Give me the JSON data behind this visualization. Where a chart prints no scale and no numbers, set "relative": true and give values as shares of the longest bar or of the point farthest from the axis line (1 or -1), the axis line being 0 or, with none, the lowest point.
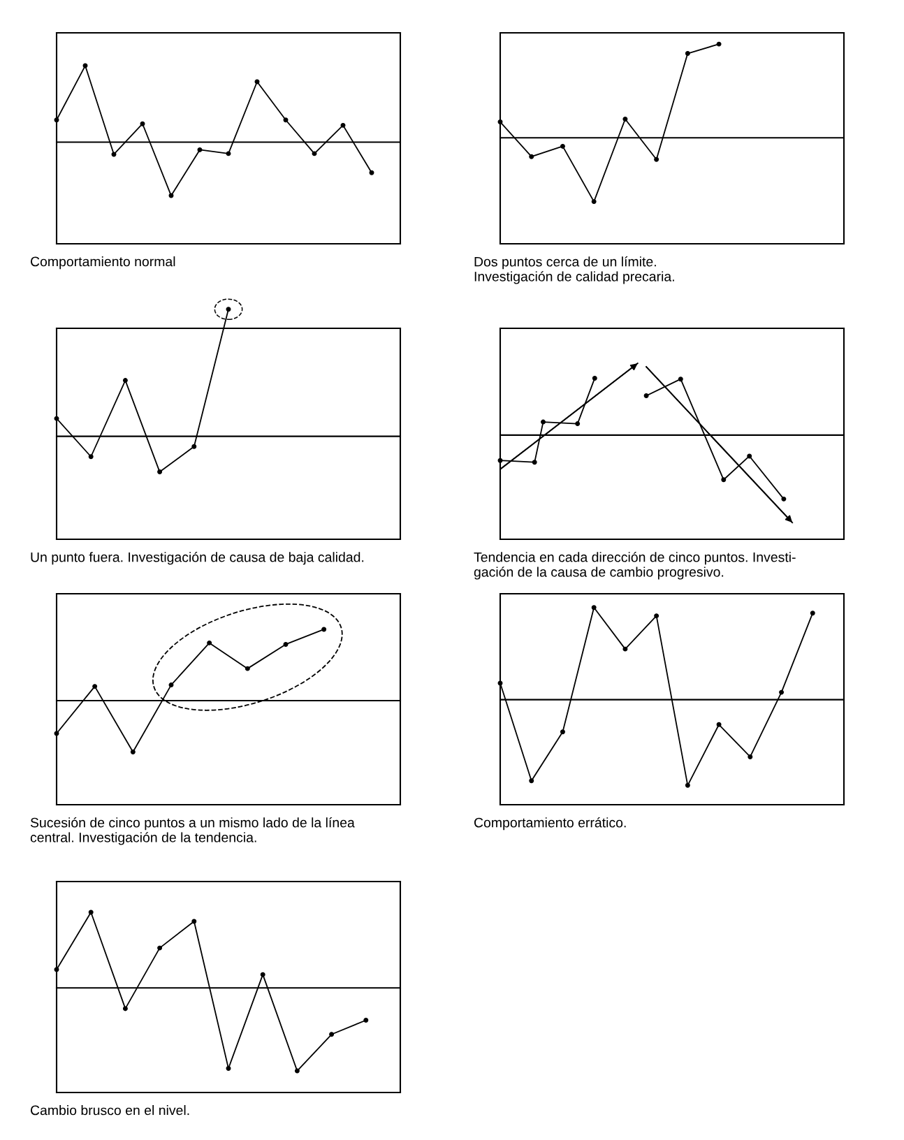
{
  "chart_data": [
    {
      "type": "line",
      "relative": true,
      "marker": "circle",
      "categories": [
        null,
        null,
        null,
        null,
        null,
        null,
        null,
        null,
        null,
        null,
        null,
        null,
        null
      ],
      "series": [
        {
          "color": "#000000",
          "values": [
            0.29,
            1,
            -0.16,
            0.24,
            -0.7,
            -0.1,
            -0.15,
            0.79,
            0.29,
            -0.15,
            0.22,
            -0.4,
            null
          ]
        }
      ],
      "ref_lines": [
        {
          "axis": "y",
          "value": 0
        },
        {
          "axis": "y",
          "value": 1.43
        },
        {
          "axis": "y",
          "value": -1.33
        }
      ],
      "annotations": [
        "Comportamiento normal"
      ]
    },
    {
      "type": "line",
      "relative": true,
      "marker": "circle",
      "categories": [
        null,
        null,
        null,
        null,
        null,
        null,
        null,
        null,
        null,
        null,
        null,
        null
      ],
      "series": [
        {
          "color": "#000000",
          "values": [
            0.17,
            -0.2,
            -0.09,
            -0.68,
            0.2,
            -0.23,
            0.9,
            1,
            null,
            null,
            null,
            null
          ]
        }
      ],
      "ref_lines": [
        {
          "axis": "y",
          "value": 0
        },
        {
          "axis": "y",
          "value": 1.12
        },
        {
          "axis": "y",
          "value": -1.13
        }
      ],
      "annotations": [
        "Dos puntos cerca de un límite.\nInvestigación de calidad precaria."
      ]
    },
    {
      "type": "line",
      "relative": true,
      "marker": "circle",
      "categories": [
        null,
        null,
        null,
        null,
        null,
        null,
        null,
        null,
        null,
        null,
        null
      ],
      "series": [
        {
          "color": "#000000",
          "values": [
            0.14,
            -0.16,
            0.44,
            -0.28,
            -0.08,
            1,
            null,
            null,
            null,
            null,
            null
          ]
        }
      ],
      "ref_lines": [
        {
          "axis": "y",
          "value": 0
        },
        {
          "axis": "y",
          "value": 0.85
        },
        {
          "axis": "y",
          "value": -0.81
        }
      ],
      "annotations": [
        "Un punto fuera. Investigación de causa de baja calidad."
      ]
    },
    {
      "type": "line",
      "relative": true,
      "marker": "circle",
      "categories": [
        null,
        null,
        null,
        null,
        null,
        null,
        null,
        null,
        null,
        null,
        null,
        null,
        null,
        null,
        null,
        null,
        null,
        null,
        null,
        null,
        null,
        null,
        null,
        null,
        null,
        null,
        null,
        null,
        null,
        null,
        null,
        null,
        null,
        null,
        null,
        null,
        null,
        null,
        null,
        null,
        null
      ],
      "series": [
        {
          "color": "#000000",
          "values": [
            -0.29,
            null,
            null,
            null,
            -0.31,
            0.15,
            null,
            null,
            null,
            0.13,
            null,
            0.65,
            null,
            null,
            null,
            null,
            null,
            null,
            null,
            null,
            null,
            null,
            null,
            null,
            null,
            null,
            null,
            null,
            null,
            null,
            null,
            null,
            null,
            null,
            null,
            null,
            null,
            null,
            null,
            null,
            null
          ]
        },
        {
          "color": "#000000",
          "values": [
            null,
            null,
            null,
            null,
            null,
            null,
            null,
            null,
            null,
            null,
            null,
            null,
            null,
            null,
            null,
            null,
            null,
            0.45,
            null,
            null,
            null,
            0.64,
            null,
            null,
            null,
            null,
            -0.51,
            null,
            null,
            -0.24,
            null,
            null,
            null,
            -0.73,
            null,
            null,
            null,
            null,
            null,
            null,
            null
          ]
        },
        {
          "type": "line",
          "marker": "none",
          "color": "#000000",
          "values": [
            -0.39,
            null,
            null,
            null,
            null,
            null,
            null,
            null,
            null,
            null,
            null,
            null,
            null,
            null,
            null,
            null,
            0.82,
            null,
            null,
            null,
            null,
            null,
            null,
            null,
            null,
            null,
            null,
            null,
            null,
            null,
            null,
            null,
            null,
            null,
            null,
            null,
            null,
            null,
            null,
            null,
            null
          ]
        },
        {
          "type": "line",
          "marker": "none",
          "color": "#000000",
          "values": [
            null,
            null,
            null,
            null,
            null,
            null,
            null,
            null,
            null,
            null,
            null,
            null,
            null,
            null,
            null,
            null,
            null,
            0.78,
            null,
            null,
            null,
            null,
            null,
            null,
            null,
            null,
            null,
            null,
            null,
            null,
            null,
            null,
            null,
            null,
            -1,
            null,
            null,
            null,
            null,
            null,
            null
          ]
        }
      ],
      "ref_lines": [
        {
          "axis": "y",
          "value": 0
        },
        {
          "axis": "y",
          "value": 1.22
        },
        {
          "axis": "y",
          "value": -1.19
        }
      ],
      "annotations": [
        "Tendencia en cada dirección de cinco puntos. Investi-\ngación de la causa de cambio progresivo."
      ]
    },
    {
      "type": "line",
      "relative": true,
      "marker": "circle",
      "categories": [
        null,
        null,
        null,
        null,
        null,
        null,
        null,
        null,
        null,
        null
      ],
      "series": [
        {
          "color": "#000000",
          "values": [
            -0.46,
            0.2,
            -0.72,
            0.22,
            0.81,
            0.45,
            0.79,
            1,
            null,
            null
          ]
        }
      ],
      "ref_lines": [
        {
          "axis": "y",
          "value": 0
        },
        {
          "axis": "y",
          "value": 1.5
        },
        {
          "axis": "y",
          "value": -1.46
        }
      ],
      "annotations": [
        "Sucesión de cinco puntos a un mismo lado de la línea\ncentral. Investigación de la tendencia."
      ]
    },
    {
      "type": "line",
      "relative": true,
      "marker": "circle",
      "categories": [
        null,
        null,
        null,
        null,
        null,
        null,
        null,
        null,
        null,
        null,
        null,
        null
      ],
      "series": [
        {
          "color": "#000000",
          "values": [
            0.18,
            -0.88,
            -0.35,
            1,
            0.55,
            0.91,
            -0.93,
            -0.27,
            -0.62,
            0.08,
            0.94,
            null
          ]
        }
      ],
      "ref_lines": [
        {
          "axis": "y",
          "value": 0
        },
        {
          "axis": "y",
          "value": 1.15
        },
        {
          "axis": "y",
          "value": -1.14
        }
      ],
      "annotations": [
        "Comportamiento errático."
      ]
    },
    {
      "type": "line",
      "relative": true,
      "marker": "circle",
      "categories": [
        null,
        null,
        null,
        null,
        null,
        null,
        null,
        null,
        null,
        null,
        null
      ],
      "series": [
        {
          "color": "#000000",
          "values": [
            0.22,
            0.91,
            -0.25,
            0.48,
            0.8,
            -0.97,
            0.16,
            -1,
            -0.56,
            -0.39,
            null
          ]
        }
      ],
      "ref_lines": [
        {
          "axis": "y",
          "value": 0
        },
        {
          "axis": "y",
          "value": 1.28
        },
        {
          "axis": "y",
          "value": -1.26
        }
      ],
      "annotations": [
        "Cambio brusco en el nivel."
      ]
    }
  ]
}
